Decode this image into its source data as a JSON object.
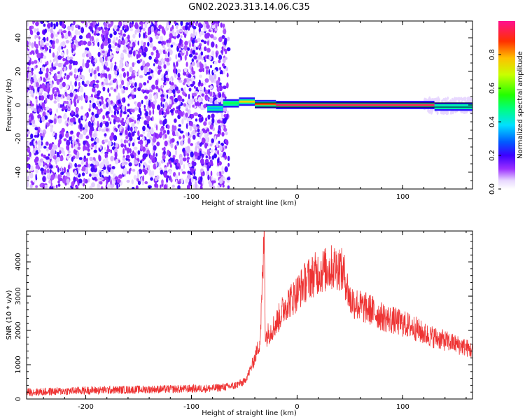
{
  "title": "GN02.2023.313.14.06.C35",
  "chart_data": [
    {
      "type": "heatmap",
      "xlabel": "Height of straight line (km)",
      "ylabel": "Frequency (Hz)",
      "xlim": [
        -256,
        166
      ],
      "ylim": [
        -50,
        50
      ],
      "xticks": [
        -200,
        -100,
        0,
        100
      ],
      "yticks": [
        -40,
        -20,
        0,
        20,
        40
      ],
      "noise_region_x": [
        -256,
        -70
      ],
      "carrier_segments": [
        {
          "x0": -85,
          "x1": -70,
          "y": -2,
          "amplitude": 0.35
        },
        {
          "x0": -70,
          "x1": -55,
          "y": 1,
          "amplitude": 0.5
        },
        {
          "x0": -55,
          "x1": -40,
          "y": 2,
          "amplitude": 0.75
        },
        {
          "x0": -40,
          "x1": -20,
          "y": 0.5,
          "amplitude": 0.85
        },
        {
          "x0": -20,
          "x1": 130,
          "y": 0,
          "amplitude": 0.95
        },
        {
          "x0": 130,
          "x1": 166,
          "y": -1,
          "amplitude": 0.4
        }
      ],
      "colorbar": {
        "label": "Normalized spectral amplitude",
        "ticks": [
          0.0,
          0.2,
          0.4,
          0.6,
          0.8
        ],
        "range": [
          0,
          1
        ]
      }
    },
    {
      "type": "line",
      "xlabel": "Height of straight line (km)",
      "ylabel": "SNR (10 * v/v)",
      "xlim": [
        -256,
        166
      ],
      "ylim": [
        0,
        4900
      ],
      "xticks": [
        -200,
        -100,
        0,
        100
      ],
      "yticks": [
        0,
        1000,
        2000,
        3000,
        4000
      ],
      "series": [
        {
          "color": "#ee3333",
          "x": [
            -256,
            -240,
            -220,
            -200,
            -180,
            -160,
            -140,
            -120,
            -100,
            -80,
            -60,
            -50,
            -45,
            -40,
            -35,
            -31,
            -30,
            -25,
            -20,
            -15,
            -10,
            -5,
            0,
            5,
            10,
            15,
            20,
            25,
            30,
            35,
            40,
            45,
            50,
            60,
            70,
            80,
            90,
            100,
            110,
            120,
            130,
            140,
            150,
            160,
            166
          ],
          "y": [
            200,
            210,
            230,
            250,
            260,
            270,
            280,
            290,
            300,
            310,
            380,
            500,
            800,
            1200,
            1700,
            4800,
            1800,
            2000,
            2200,
            2500,
            2800,
            2900,
            3100,
            3300,
            3500,
            3600,
            3700,
            3750,
            3800,
            3850,
            3850,
            3600,
            2900,
            2700,
            2600,
            2400,
            2300,
            2200,
            2100,
            1900,
            1800,
            1700,
            1600,
            1500,
            1400
          ]
        }
      ]
    }
  ]
}
